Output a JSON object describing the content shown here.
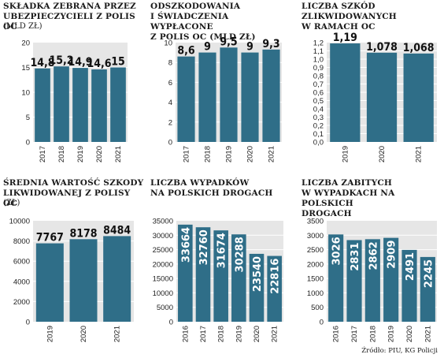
{
  "colors": {
    "bar": "#2f6e88",
    "plot_bg": "#e6e6e6",
    "grid": "#ffffff",
    "text": "#1a1a1a"
  },
  "source": "Źródło: PIU, KG Policji",
  "charts": [
    {
      "title_lines": [
        "Składka zebrana przez",
        "ubezpieczycieli z polis OC"
      ],
      "unit": "(mld zł)",
      "chart_data": {
        "type": "bar",
        "categories": [
          "2017",
          "2018",
          "2019",
          "2020",
          "2021"
        ],
        "values": [
          14.8,
          15.2,
          14.9,
          14.6,
          15
        ],
        "labels": [
          "14,8",
          "15,2",
          "14,9",
          "14,6",
          "15"
        ],
        "ylim": [
          0,
          20
        ],
        "yticks": [
          "0",
          "5",
          "10",
          "15",
          "20"
        ],
        "label_pos": "top",
        "grid": true
      }
    },
    {
      "title_lines": [
        "Odszkodowania",
        "i świadczenia wypłacone",
        "z polis OC (mld zł)"
      ],
      "unit": "",
      "chart_data": {
        "type": "bar",
        "categories": [
          "2017",
          "2018",
          "2019",
          "2020",
          "2021"
        ],
        "values": [
          8.6,
          9,
          9.5,
          9,
          9.3
        ],
        "labels": [
          "8,6",
          "9",
          "9,5",
          "9",
          "9,3"
        ],
        "ylim": [
          0,
          10
        ],
        "yticks": [
          "0",
          "2",
          "4",
          "6",
          "8",
          "10"
        ],
        "label_pos": "top",
        "grid": true
      }
    },
    {
      "title_lines": [
        "Liczba szkód",
        "zlikwidowanych",
        "w ramach OC"
      ],
      "unit": "",
      "chart_data": {
        "type": "bar",
        "categories": [
          "2019",
          "2020",
          "2021"
        ],
        "values": [
          1.19,
          1.078,
          1.068
        ],
        "labels": [
          "1,19",
          "1,078",
          "1,068"
        ],
        "ylim": [
          0,
          1.2
        ],
        "yticks": [
          "0,0",
          "0,1",
          "0,2",
          "0,3",
          "0,4",
          "0,5",
          "0,6",
          "0,7",
          "0,8",
          "0,9",
          "1,0",
          "1,1",
          "1,2"
        ],
        "label_pos": "top",
        "grid": true
      }
    },
    {
      "title_lines": [
        "Średnia wartość szkody",
        "likwidowanej z polisy OC"
      ],
      "unit": "(zł)",
      "chart_data": {
        "type": "bar",
        "categories": [
          "2019",
          "2020",
          "2021"
        ],
        "values": [
          7767,
          8178,
          8484
        ],
        "labels": [
          "7767",
          "8178",
          "8484"
        ],
        "ylim": [
          0,
          10000
        ],
        "yticks": [
          "0",
          "2000",
          "4000",
          "6000",
          "8000",
          "10000"
        ],
        "label_pos": "top",
        "grid": true
      }
    },
    {
      "title_lines": [
        "Liczba wypadków",
        "na polskich drogach"
      ],
      "unit": "",
      "chart_data": {
        "type": "bar",
        "categories": [
          "2016",
          "2017",
          "2018",
          "2019",
          "2020",
          "2021"
        ],
        "values": [
          33664,
          32760,
          31674,
          30288,
          23540,
          22816
        ],
        "labels": [
          "33664",
          "32760",
          "31674",
          "30288",
          "23540",
          "22816"
        ],
        "ylim": [
          0,
          35000
        ],
        "yticks": [
          "0",
          "5000",
          "10000",
          "15000",
          "20000",
          "25000",
          "30000",
          "35000"
        ],
        "label_pos": "vertical",
        "grid": true
      }
    },
    {
      "title_lines": [
        "Liczba zabitych",
        "w wypadkach na polskich",
        "drogach"
      ],
      "unit": "",
      "chart_data": {
        "type": "bar",
        "categories": [
          "2016",
          "2017",
          "2018",
          "2019",
          "2020",
          "2021"
        ],
        "values": [
          3026,
          2831,
          2862,
          2909,
          2491,
          2245
        ],
        "labels": [
          "3026",
          "2831",
          "2862",
          "2909",
          "2491",
          "2245"
        ],
        "ylim": [
          0,
          3500
        ],
        "yticks": [
          "0",
          "500",
          "1000",
          "1500",
          "2000",
          "2500",
          "3000",
          "3500"
        ],
        "label_pos": "vertical",
        "grid": true
      }
    }
  ]
}
